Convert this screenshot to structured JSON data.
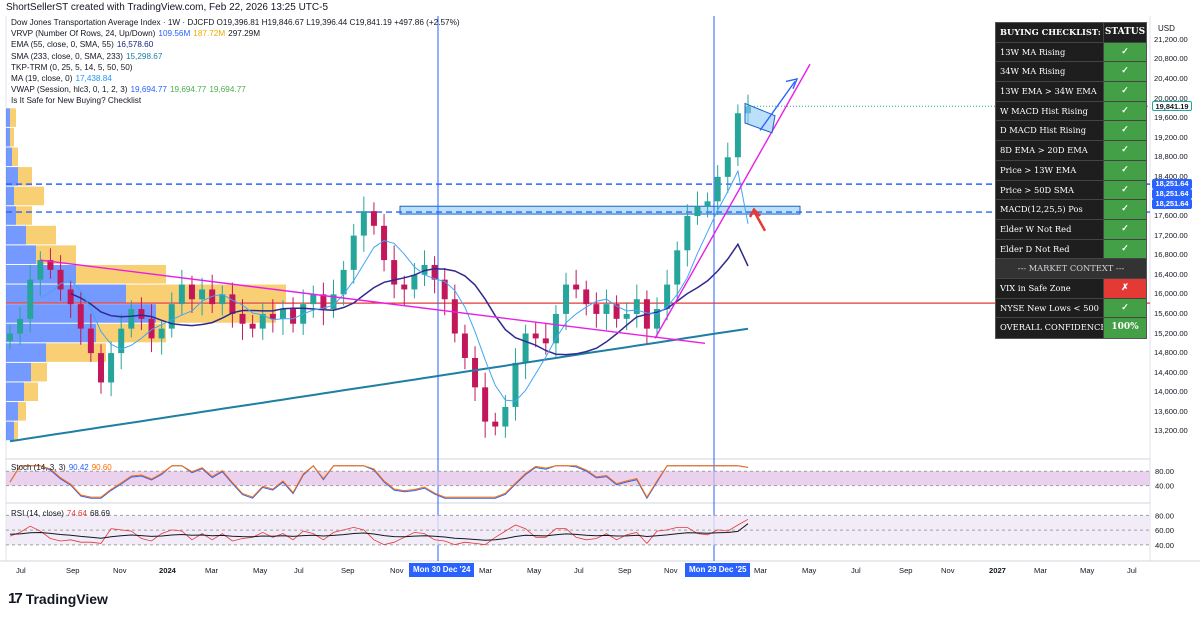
{
  "credit": "ShortSellerST created with TradingView.com, Feb 22, 2026 13:25 UTC-5",
  "legend": [
    {
      "text": "Dow Jones Transportation Average Index · 1W · DJCFD  O19,396.81  H19,846.67  L19,396.44  C19,841.19  +497.86 (+2.57%)",
      "vals": []
    },
    {
      "text": "VRVP (Number Of Rows, 24, Up/Down)",
      "vals": [
        {
          "v": "109.56M",
          "c": "#2962ff"
        },
        {
          "v": "187.72M",
          "c": "#f2a900"
        },
        {
          "v": "297.29M",
          "c": "#131722"
        }
      ]
    },
    {
      "text": "EMA (55, close, 0, SMA, 55)",
      "vals": [
        {
          "v": "16,578.60",
          "c": "#1a237e"
        }
      ]
    },
    {
      "text": "SMA (233, close, 0, SMA, 233)",
      "vals": [
        {
          "v": "15,298.67",
          "c": "#1e7fa3"
        }
      ]
    },
    {
      "text": "TKP-TRM  (0, 25, 5, 14, 5, 50, 50)",
      "vals": []
    },
    {
      "text": "MA (19, close, 0)",
      "vals": [
        {
          "v": "17,438.84",
          "c": "#2196f3"
        }
      ]
    },
    {
      "text": "VWAP (Session, hlc3, 0, 1, 2, 3)",
      "vals": [
        {
          "v": "19,694.77",
          "c": "#2962ff"
        },
        {
          "v": "19,694.77",
          "c": "#4caf50"
        },
        {
          "v": "19,694.77",
          "c": "#4caf50"
        }
      ]
    },
    {
      "text": "Is It Safe for New Buying? Checklist",
      "vals": []
    }
  ],
  "stoch_legend": {
    "text": "Stoch (14, 3, 3)",
    "k": "90.42",
    "d": "90.60"
  },
  "rsi_legend": {
    "text": "RSI (14, close)",
    "rsi": "74.64",
    "ma": "68.69"
  },
  "axis": {
    "currency": "USD"
  },
  "colors": {
    "up": "#26a69a",
    "down": "#c2185b",
    "sma233": "#1e7fa3",
    "ema55": "#2f2a8f",
    "ma19": "#42a5f5",
    "trend_pink": "#e91ee6",
    "hline_red": "#e53935",
    "hline_blue": "#2962ff",
    "vrvp_up": "#2962ff",
    "vrvp_down": "#f2a900",
    "stoch_bg": "#e1bee7",
    "rsi_bg": "#ede7f6"
  },
  "checklist": {
    "header": {
      "name": "BUYING CHECKLIST: DJT",
      "status": "STATUS"
    },
    "rows": [
      {
        "name": "13W MA Rising",
        "status": "✓",
        "color": "#43a047"
      },
      {
        "name": "34W MA Rising",
        "status": "✓",
        "color": "#43a047"
      },
      {
        "name": "13W EMA > 34W EMA",
        "status": "✓",
        "color": "#43a047"
      },
      {
        "name": "W MACD Hist Rising",
        "status": "✓",
        "color": "#43a047"
      },
      {
        "name": "D MACD Hist Rising",
        "status": "✓",
        "color": "#43a047"
      },
      {
        "name": "8D EMA > 20D EMA",
        "status": "✓",
        "color": "#43a047"
      },
      {
        "name": "Price > 13W EMA",
        "status": "✓",
        "color": "#43a047"
      },
      {
        "name": "Price > 50D SMA",
        "status": "✓",
        "color": "#43a047"
      },
      {
        "name": "MACD(12,25,5) Pos",
        "status": "✓",
        "color": "#43a047"
      },
      {
        "name": "Elder W Not Red",
        "status": "✓",
        "color": "#43a047"
      },
      {
        "name": "Elder D Not Red",
        "status": "✓",
        "color": "#43a047"
      }
    ],
    "section": "--- MARKET CONTEXT ---",
    "context": [
      {
        "name": "VIX in Safe Zone",
        "status": "✗",
        "color": "#e53935"
      },
      {
        "name": "NYSE New Lows < 500",
        "status": "✓",
        "color": "#43a047"
      }
    ],
    "overall": {
      "name": "OVERALL CONFIDENCE",
      "status": "100%",
      "color": "#43a047"
    }
  },
  "price_flags": {
    "current": {
      "label": "19,841.19",
      "color": "#ffffff",
      "text_color": "#131722"
    },
    "levels": [
      {
        "label": "18,251.64",
        "color": "#2962ff"
      },
      {
        "label": "18,251.64",
        "color": "#2962ff"
      },
      {
        "label": "18,251.64",
        "color": "#2962ff"
      }
    ]
  },
  "time_flags": [
    "Mon 30 Dec '24",
    "Mon 29 Dec '25"
  ],
  "brand": {
    "logo": "17",
    "name": "TradingView"
  },
  "chart_data": {
    "type": "candlestick",
    "title": "Dow Jones Transportation Average Index · 1W · DJCFD",
    "ylabel": "USD",
    "ylim": [
      12800,
      21400
    ],
    "yticks": [
      13200,
      13600,
      14000,
      14400,
      14800,
      15200,
      15600,
      16000,
      16400,
      16800,
      17200,
      17600,
      18000,
      18400,
      18800,
      19200,
      19600,
      20000,
      20400,
      20800,
      21200
    ],
    "ytick_labels": [
      "13,200.00",
      "13,600.00",
      "14,000.00",
      "14,400.00",
      "14,800.00",
      "15,200.00",
      "15,600.00",
      "16,000.00",
      "16,400.00",
      "16,800.00",
      "17,200.00",
      "17,600.00",
      "18,000.00",
      "18,400.00",
      "18,800.00",
      "19,200.00",
      "19,600.00",
      "20,000.00",
      "20,400.00",
      "20,800.00",
      "21,200.00"
    ],
    "xticks": [
      "Jul",
      "Sep",
      "Nov",
      "2024",
      "Mar",
      "May",
      "Jul",
      "Sep",
      "Nov",
      "Mar",
      "May",
      "Jul",
      "Sep",
      "Nov",
      "Mar",
      "May",
      "Jul",
      "Sep",
      "Nov",
      "2027",
      "Mar",
      "May",
      "Jul"
    ],
    "last_close": 19841.19,
    "levels": {
      "blue_dashed": 18251.64,
      "red": 15820,
      "blue_dashed_lower": 17680
    },
    "close_path": [
      15200,
      15500,
      16300,
      16700,
      16500,
      16100,
      15800,
      15300,
      14800,
      14200,
      14800,
      15300,
      15700,
      15500,
      15100,
      15300,
      15800,
      16200,
      15900,
      16100,
      15800,
      16000,
      15600,
      15400,
      15300,
      15600,
      15500,
      15700,
      15400,
      15800,
      16000,
      15700,
      16000,
      16500,
      17200,
      17700,
      17400,
      16700,
      16200,
      16100,
      16400,
      16600,
      16300,
      15900,
      15200,
      14700,
      14100,
      13400,
      13300,
      13700,
      14600,
      15200,
      15100,
      15000,
      15600,
      16200,
      16100,
      15800,
      15600,
      15800,
      15500,
      15600,
      15900,
      15300,
      15700,
      16200,
      16900,
      17600,
      17800,
      17900,
      18400,
      18800,
      19700,
      19841
    ],
    "series": [
      {
        "name": "SMA 233",
        "value": 15298.67
      },
      {
        "name": "EMA 55",
        "value": 16578.6
      },
      {
        "name": "MA 19",
        "value": 17438.84
      }
    ],
    "stoch": {
      "k": 90.42,
      "d": 90.6,
      "levels": [
        80,
        40
      ]
    },
    "rsi": {
      "rsi": 74.64,
      "ma": 68.69,
      "levels": [
        80,
        60,
        40
      ]
    }
  }
}
